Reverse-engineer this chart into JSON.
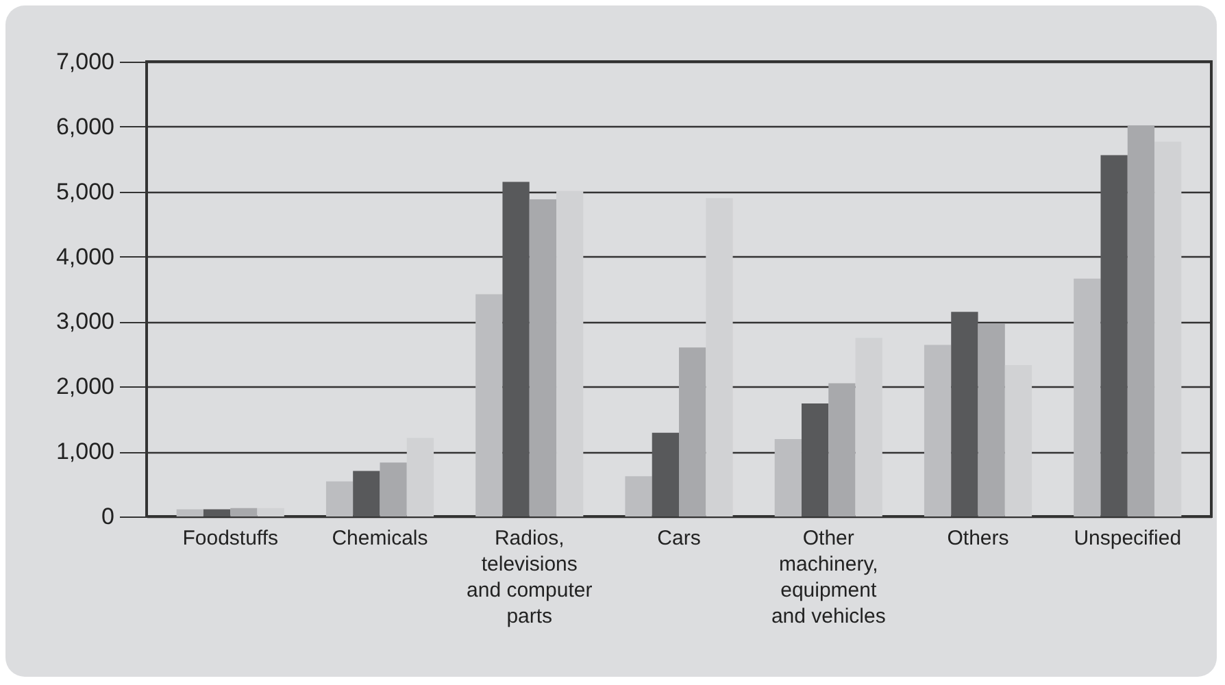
{
  "chart_data": {
    "type": "bar",
    "categories": [
      "Foodstuffs",
      "Chemicals",
      "Radios, televisions and computer parts",
      "Cars",
      "Other machinery, equipment and vehicles",
      "Others",
      "Unspecified"
    ],
    "series": [
      {
        "color": "#bcbdc0",
        "values": [
          110,
          540,
          3420,
          620,
          1190,
          2640,
          3660
        ]
      },
      {
        "color": "#58595b",
        "values": [
          110,
          700,
          5150,
          1290,
          1740,
          3150,
          5560
        ]
      },
      {
        "color": "#a8a9ac",
        "values": [
          130,
          830,
          4880,
          2600,
          2050,
          2970,
          6020
        ]
      },
      {
        "color": "#d1d2d4",
        "values": [
          130,
          1210,
          5010,
          4900,
          2750,
          2330,
          5770
        ]
      }
    ],
    "ylim": [
      0,
      7000
    ],
    "yticks": [
      {
        "value": 0,
        "label": "0"
      },
      {
        "value": 1000,
        "label": "1,000"
      },
      {
        "value": 2000,
        "label": "2,000"
      },
      {
        "value": 3000,
        "label": "3,000"
      },
      {
        "value": 4000,
        "label": "4,000"
      },
      {
        "value": 5000,
        "label": "5,000"
      },
      {
        "value": 6000,
        "label": "6,000"
      },
      {
        "value": 7000,
        "label": "7,000"
      }
    ],
    "grid": true,
    "legend": false
  }
}
